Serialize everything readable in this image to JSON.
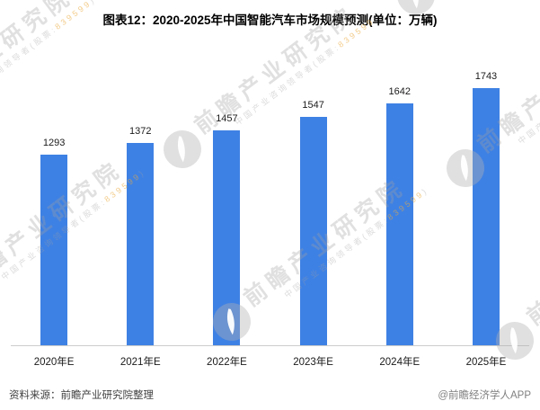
{
  "title": "图表12：2020-2025年中国智能汽车市场规模预测(单位：万辆)",
  "chart_data": {
    "type": "bar",
    "title": "图表12：2020-2025年中国智能汽车市场规模预测(单位：万辆)",
    "unit": "万辆",
    "categories": [
      "2020年E",
      "2021年E",
      "2022年E",
      "2023年E",
      "2024年E",
      "2025年E"
    ],
    "values": [
      1293,
      1372,
      1457,
      1547,
      1642,
      1743
    ],
    "xlabel": "",
    "ylabel": "",
    "ylim": [
      0,
      2000
    ],
    "grid": false,
    "legend_position": "none",
    "value_labels_shown": true,
    "bar_color": "#3E81E4"
  },
  "footer": {
    "source": "资料来源：前瞻产业研究院整理",
    "credit": "@前瞻经济学人APP"
  },
  "watermark": {
    "brand_text": "前瞻产业研究院",
    "tagline_prefix": "中国产业咨询领导者(股票:",
    "stock_code": "839599",
    "tagline_suffix": ")"
  },
  "colors": {
    "bar": "#3E81E4",
    "axis_line": "#cccccc",
    "title_text": "#000000",
    "label_text": "#1a1a1a",
    "source_text": "#404040",
    "credit_text": "#808080",
    "watermark_gray": "#d4d4d4",
    "watermark_orange": "#f0b84b"
  }
}
